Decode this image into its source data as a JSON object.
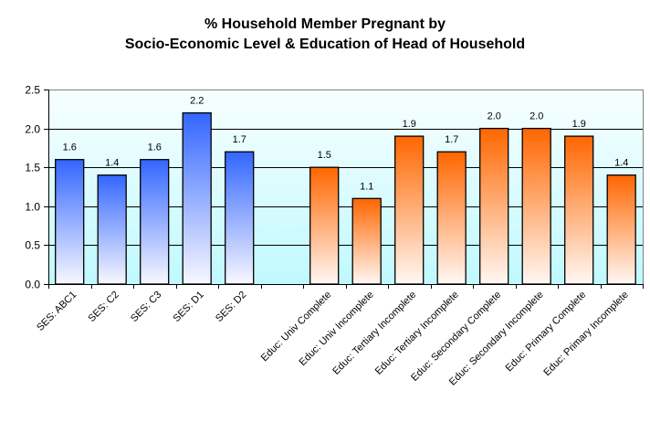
{
  "chart_data": {
    "type": "bar",
    "title_line1": "% Household Member Pregnant by",
    "title_line2": "Socio-Economic Level & Education of Head of Household",
    "xlabel": "",
    "ylabel": "",
    "ylim": [
      0,
      2.5
    ],
    "yticks": [
      "0.0",
      "0.5",
      "1.0",
      "1.5",
      "2.0",
      "2.5"
    ],
    "grid": true,
    "legend": "none",
    "categories": [
      "SES: ABC1",
      "SES: C2",
      "SES: C3",
      "SES: D1",
      "SES: D2",
      "",
      "Educ: Univ Complete",
      "Educ: Univ Incomplete",
      "Educ: Tertiary Incomplete",
      "Educ: Tertiary Incomplete",
      "Educ: Secondary Complete",
      "Educ: Secondary Incomplete",
      "Educ: Primary Complete",
      "Educ: Primary Incomplete"
    ],
    "values": [
      1.6,
      1.4,
      1.6,
      2.2,
      1.7,
      null,
      1.5,
      1.1,
      1.9,
      1.7,
      2.0,
      2.0,
      1.9,
      1.4
    ],
    "data_labels": [
      "1.6",
      "1.4",
      "1.6",
      "2.2",
      "1.7",
      "",
      "1.5",
      "1.1",
      "1.9",
      "1.7",
      "2.0",
      "2.0",
      "1.9",
      "1.4"
    ],
    "groups": [
      "ses",
      "ses",
      "ses",
      "ses",
      "ses",
      "",
      "educ",
      "educ",
      "educ",
      "educ",
      "educ",
      "educ",
      "educ",
      "educ"
    ],
    "colors": {
      "ses_top": "#3366ff",
      "ses_bottom": "#f8f8ff",
      "educ_top": "#ff6600",
      "educ_bottom": "#fff8f4",
      "plot_bg_top": "#f8ffff",
      "plot_bg_bottom": "#bff9ff"
    }
  }
}
